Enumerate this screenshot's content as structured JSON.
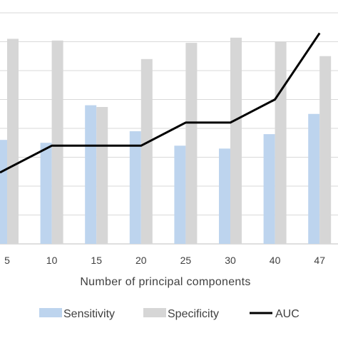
{
  "chart_data": {
    "type": "bar",
    "categories": [
      "5",
      "10",
      "15",
      "20",
      "25",
      "30",
      "40",
      "47"
    ],
    "series": [
      {
        "name": "Sensitivity",
        "kind": "bar",
        "color": "#bdd4ee",
        "values": [
          0.58,
          0.575,
          0.64,
          0.595,
          0.57,
          0.565,
          0.59,
          0.625
        ]
      },
      {
        "name": "Specificity",
        "kind": "bar",
        "color": "#d6d6d6",
        "values": [
          0.755,
          0.752,
          0.637,
          0.72,
          0.748,
          0.757,
          0.75,
          0.725
        ]
      },
      {
        "name": "AUC",
        "kind": "line",
        "color": "#000000",
        "values": [
          0.53,
          0.57,
          0.57,
          0.57,
          0.61,
          0.61,
          0.65,
          0.765
        ]
      }
    ],
    "xlabel": "Number of principal components",
    "ylabel": "",
    "ylim": [
      0.4,
      0.8
    ],
    "yticks": [
      0.4,
      0.45,
      0.5,
      0.55,
      0.6,
      0.65,
      0.7,
      0.75,
      0.8
    ],
    "grid": true,
    "legend": "bottom"
  }
}
